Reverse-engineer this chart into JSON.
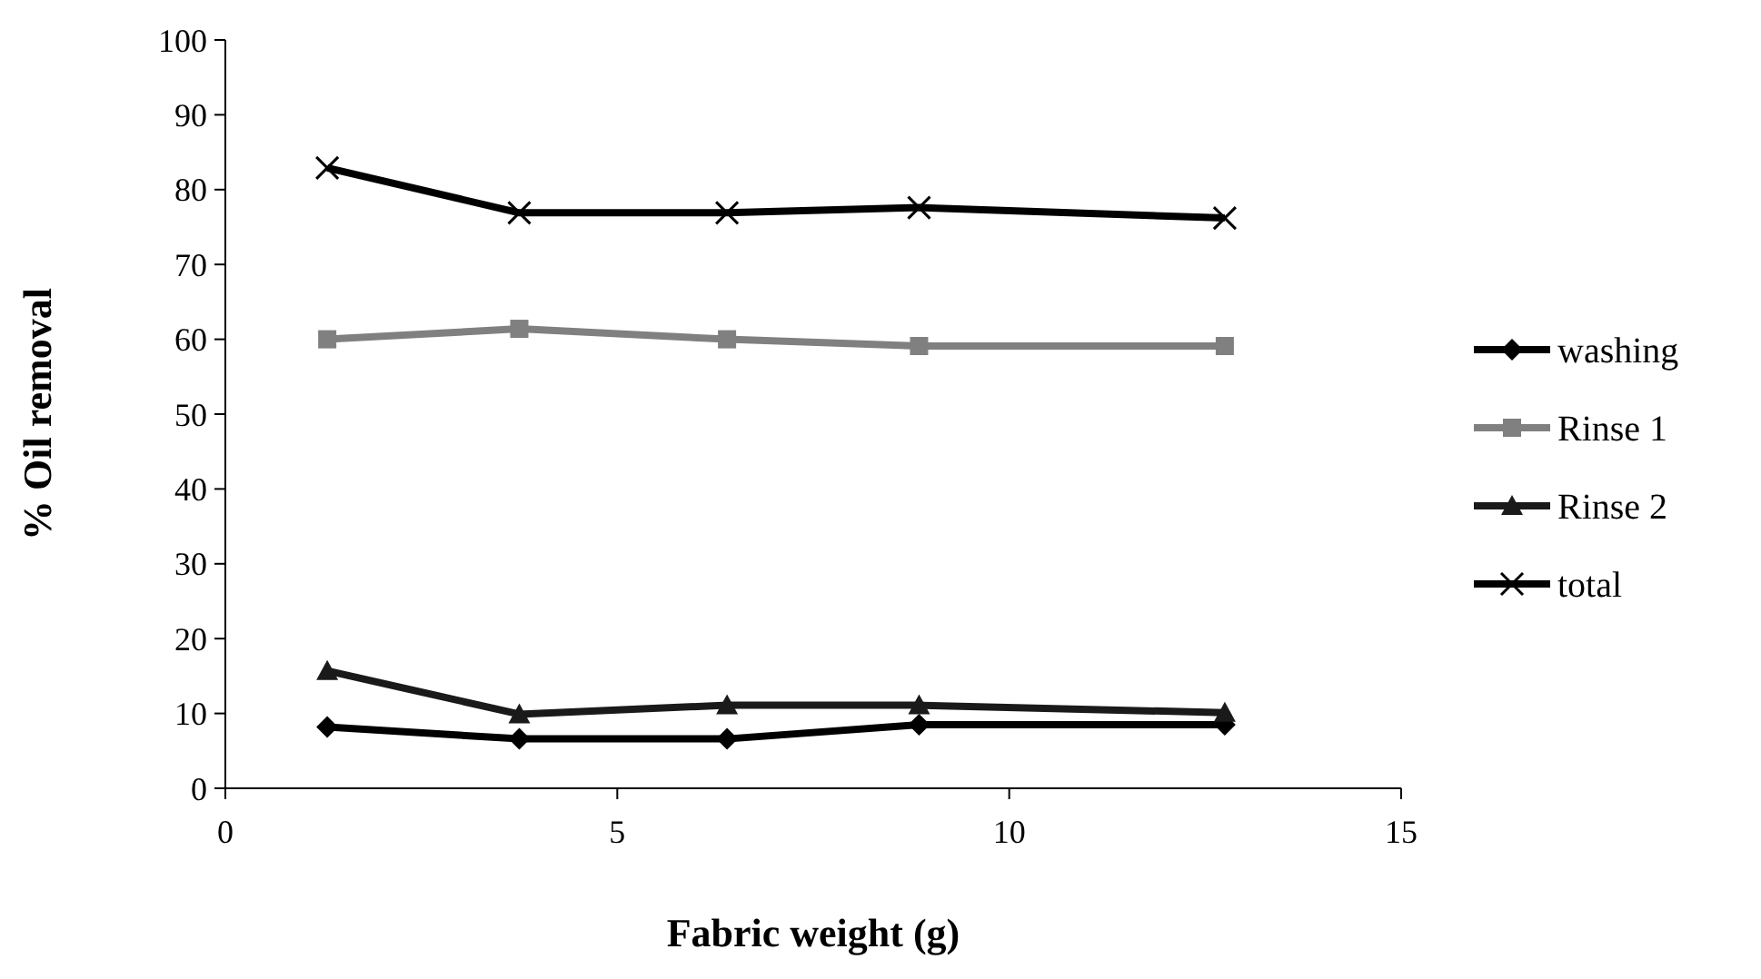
{
  "chart_data": {
    "type": "line",
    "xlabel": "Fabric weight (g)",
    "ylabel": "% Oil removal",
    "x": [
      1.3,
      3.75,
      6.4,
      8.85,
      12.75
    ],
    "xlim": [
      0,
      15
    ],
    "xticks": [
      0,
      5,
      10,
      15
    ],
    "ylim": [
      0,
      100
    ],
    "yticks": [
      0,
      10,
      20,
      30,
      40,
      50,
      60,
      70,
      80,
      90,
      100
    ],
    "grid": false,
    "legend": "right",
    "series": [
      {
        "name": "washing",
        "color": "#000000",
        "marker": "diamond",
        "values": [
          8.2,
          6.6,
          6.6,
          8.5,
          8.5
        ]
      },
      {
        "name": "Rinse 1",
        "color": "#808080",
        "marker": "square",
        "values": [
          60,
          61.4,
          60,
          59.1,
          59.1
        ]
      },
      {
        "name": "Rinse 2",
        "color": "#1a1a1a",
        "marker": "triangle",
        "values": [
          15.7,
          9.9,
          11.1,
          11.1,
          10.1
        ]
      },
      {
        "name": "total",
        "color": "#000000",
        "marker": "cross",
        "values": [
          82.9,
          76.9,
          76.9,
          77.6,
          76.2
        ]
      }
    ]
  }
}
